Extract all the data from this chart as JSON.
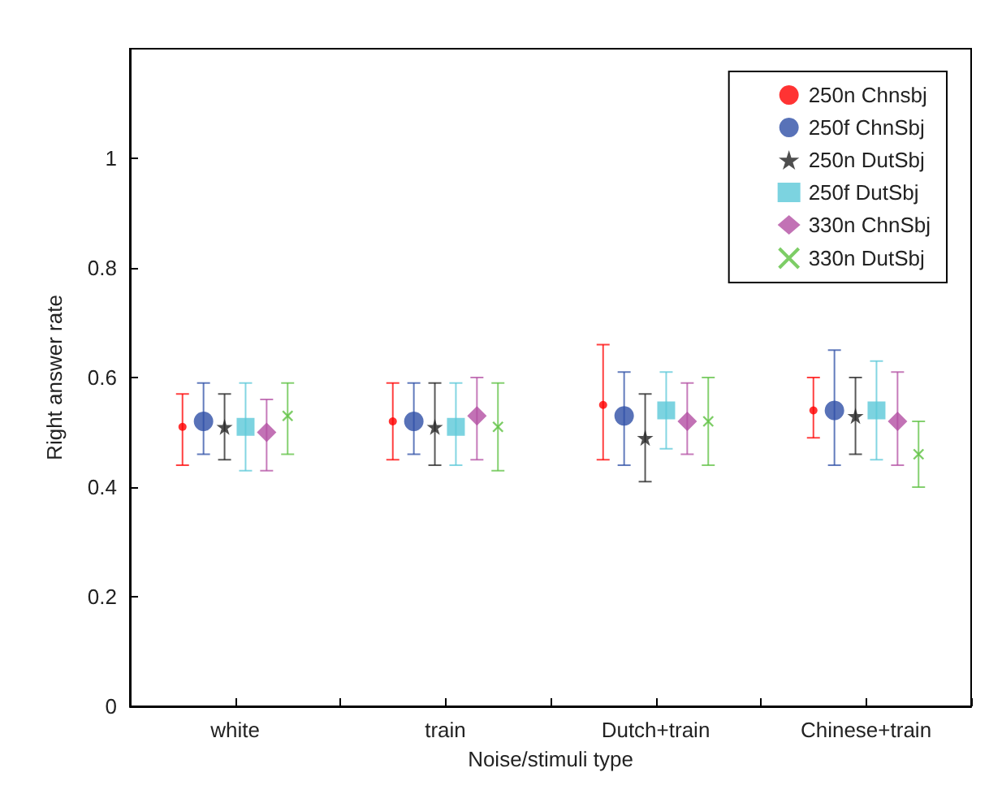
{
  "chart_data": {
    "type": "scatter",
    "xlabel": "Noise/stimuli type",
    "ylabel": "Right answer rate",
    "categories": [
      "white",
      "train",
      "Dutch+train",
      "Chinese+train"
    ],
    "ylim": [
      0,
      1.2
    ],
    "yticks": [
      0,
      0.2,
      0.4,
      0.6,
      0.8,
      1
    ],
    "grid": false,
    "legend": "top right",
    "series": [
      {
        "name": "250n Chnsbj",
        "color": "#ff0000",
        "marker": "circle",
        "values": [
          0.51,
          0.52,
          0.55,
          0.54
        ],
        "errors": [
          [
            0.44,
            0.57
          ],
          [
            0.45,
            0.59
          ],
          [
            0.45,
            0.66
          ],
          [
            0.49,
            0.6
          ]
        ]
      },
      {
        "name": "250f ChnSbj",
        "color": "#2e4fa6",
        "marker": "circle",
        "values": [
          0.52,
          0.52,
          0.53,
          0.54
        ],
        "errors": [
          [
            0.46,
            0.59
          ],
          [
            0.46,
            0.59
          ],
          [
            0.44,
            0.61
          ],
          [
            0.44,
            0.65
          ]
        ]
      },
      {
        "name": "250n DutSbj",
        "color": "#222222",
        "marker": "star",
        "values": [
          0.51,
          0.51,
          0.49,
          0.53
        ],
        "errors": [
          [
            0.45,
            0.57
          ],
          [
            0.44,
            0.59
          ],
          [
            0.41,
            0.57
          ],
          [
            0.46,
            0.6
          ]
        ]
      },
      {
        "name": "250f DutSbj",
        "color": "#5bc8d8",
        "marker": "square",
        "values": [
          0.51,
          0.51,
          0.54,
          0.54
        ],
        "errors": [
          [
            0.43,
            0.59
          ],
          [
            0.44,
            0.59
          ],
          [
            0.47,
            0.61
          ],
          [
            0.45,
            0.63
          ]
        ]
      },
      {
        "name": "330n ChnSbj",
        "color": "#b34fa3",
        "marker": "diamond",
        "values": [
          0.5,
          0.53,
          0.52,
          0.52
        ],
        "errors": [
          [
            0.43,
            0.56
          ],
          [
            0.45,
            0.6
          ],
          [
            0.46,
            0.59
          ],
          [
            0.44,
            0.61
          ]
        ]
      },
      {
        "name": "330n DutSbj",
        "color": "#5cc040",
        "marker": "cross",
        "values": [
          0.53,
          0.51,
          0.52,
          0.46
        ],
        "errors": [
          [
            0.46,
            0.59
          ],
          [
            0.43,
            0.59
          ],
          [
            0.44,
            0.6
          ],
          [
            0.4,
            0.52
          ]
        ]
      }
    ]
  }
}
